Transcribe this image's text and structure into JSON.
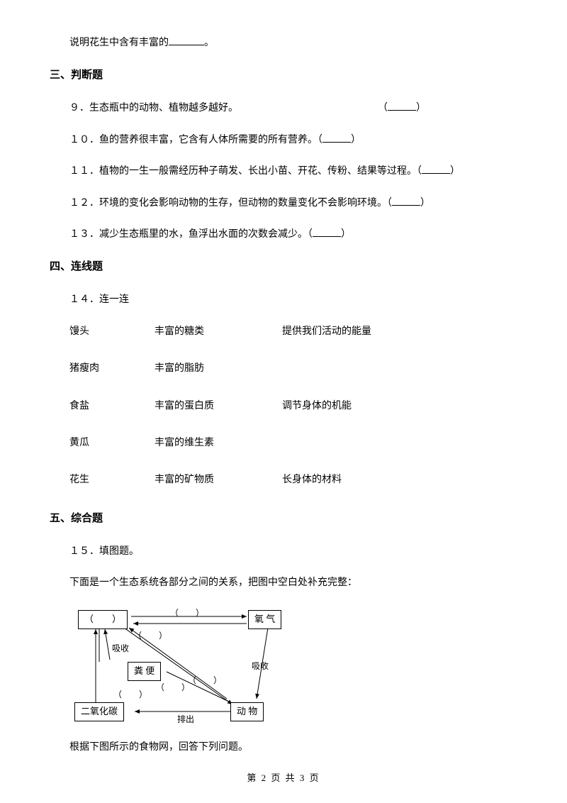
{
  "intro_line_prefix": "说明花生中含有丰富的",
  "intro_line_suffix": "。",
  "sections": {
    "s3": {
      "heading": "三、判断题"
    },
    "s4": {
      "heading": "四、连线题"
    },
    "s5": {
      "heading": "五、综合题"
    }
  },
  "q9": {
    "text_a": "９．生态瓶中的动物、植物越多越好。",
    "paren_open": "（",
    "paren_close": "）"
  },
  "q10": {
    "text_a": "１０．鱼的营养很丰富，它含有人体所需要的所有营养。（",
    "paren_close": "）"
  },
  "q11": {
    "text_a": "１１．植物的一生一般需经历种子萌发、长出小苗、开花、传粉、结果等过程。（",
    "paren_close": "）"
  },
  "q12": {
    "text_a": "１２．环境的变化会影响动物的生存，但动物的数量变化不会影响环境。（",
    "paren_close": "）"
  },
  "q13": {
    "text_a": "１３．减少生态瓶里的水，鱼浮出水面的次数会减少。（",
    "paren_close": "）"
  },
  "q14": {
    "title": "１４．连一连",
    "rows": [
      {
        "c1": "馒头",
        "c2": "丰富的糖类",
        "c3": "提供我们活动的能量"
      },
      {
        "c1": "猪瘦肉",
        "c2": "丰富的脂肪",
        "c3": ""
      },
      {
        "c1": "食盐",
        "c2": "丰富的蛋白质",
        "c3": "调节身体的机能"
      },
      {
        "c1": "黄瓜",
        "c2": "丰富的维生素",
        "c3": ""
      },
      {
        "c1": "花生",
        "c2": "丰富的矿物质",
        "c3": "长身体的材料"
      }
    ]
  },
  "q15": {
    "title": "１５．填图题。",
    "desc": "下面是一个生态系统各部分之间的关系，把图中空白处补充完整：",
    "after": "根据下图所示的食物网，回答下列问题。"
  },
  "diagram": {
    "box_blank": "（　　）",
    "box_oxygen": "氧  气",
    "box_feces": "粪  便",
    "box_co2": "二氧化碳",
    "box_animal": "动  物",
    "label_absorb": "吸收",
    "label_absorb2": "吸收",
    "label_emit": "排出",
    "label_paren": "（　　）",
    "stroke_color": "#000000"
  },
  "footer": {
    "prefix": "第 ",
    "page": "2",
    "mid": " 页 共 ",
    "total": "3",
    "suffix": " 页"
  }
}
